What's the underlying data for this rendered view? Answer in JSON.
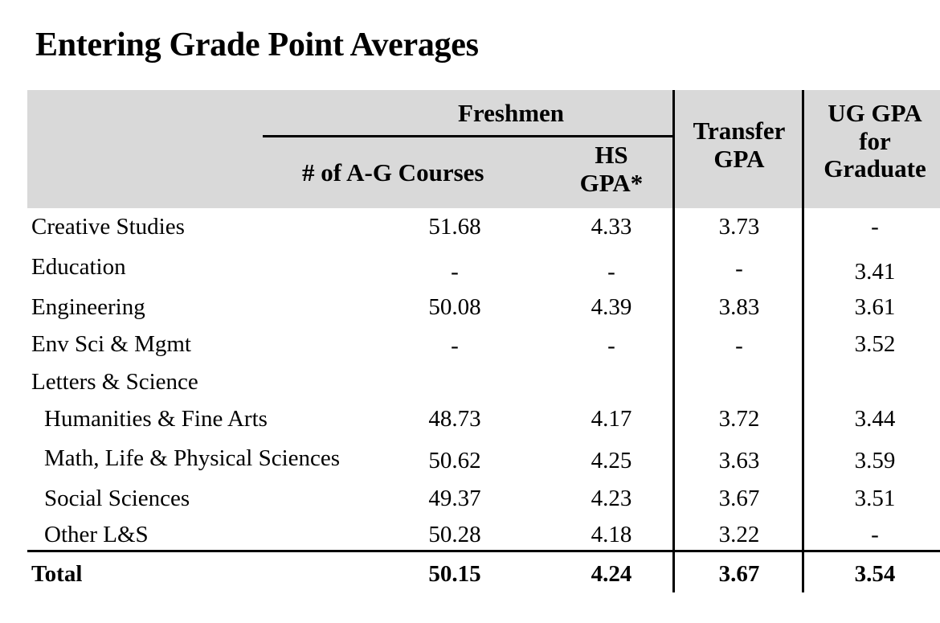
{
  "title": "Entering Grade Point Averages",
  "header": {
    "freshmen": "Freshmen",
    "ag_courses": "# of A-G Courses",
    "hs_gpa_line1": "HS",
    "hs_gpa_line2": "GPA*",
    "transfer_line1": "Transfer",
    "transfer_line2": "GPA",
    "ug_line1": "UG GPA",
    "ug_line2": "for",
    "ug_line3": "Graduate"
  },
  "rows": [
    {
      "label": "Creative Studies",
      "ag": "51.68",
      "hs": "4.33",
      "transfer": "3.73",
      "ug": "-"
    },
    {
      "label": "Education",
      "ag": "-",
      "hs": "-",
      "transfer": "-",
      "ug": "3.41"
    },
    {
      "label": "Engineering",
      "ag": "50.08",
      "hs": "4.39",
      "transfer": "3.83",
      "ug": "3.61"
    },
    {
      "label": "Env Sci & Mgmt",
      "ag": "-",
      "hs": "-",
      "transfer": "-",
      "ug": "3.52"
    },
    {
      "label": "Letters & Science",
      "ag": "",
      "hs": "",
      "transfer": "",
      "ug": ""
    },
    {
      "label": "Humanities & Fine Arts",
      "ag": "48.73",
      "hs": "4.17",
      "transfer": "3.72",
      "ug": "3.44"
    },
    {
      "label": "Math, Life & Physical Sciences",
      "ag": "50.62",
      "hs": "4.25",
      "transfer": "3.63",
      "ug": "3.59"
    },
    {
      "label": "Social Sciences",
      "ag": "49.37",
      "hs": "4.23",
      "transfer": "3.67",
      "ug": "3.51"
    },
    {
      "label": "Other L&S",
      "ag": "50.28",
      "hs": "4.18",
      "transfer": "3.22",
      "ug": "-"
    }
  ],
  "total": {
    "label": "Total",
    "ag": "50.15",
    "hs": "4.24",
    "transfer": "3.67",
    "ug": "3.54"
  }
}
